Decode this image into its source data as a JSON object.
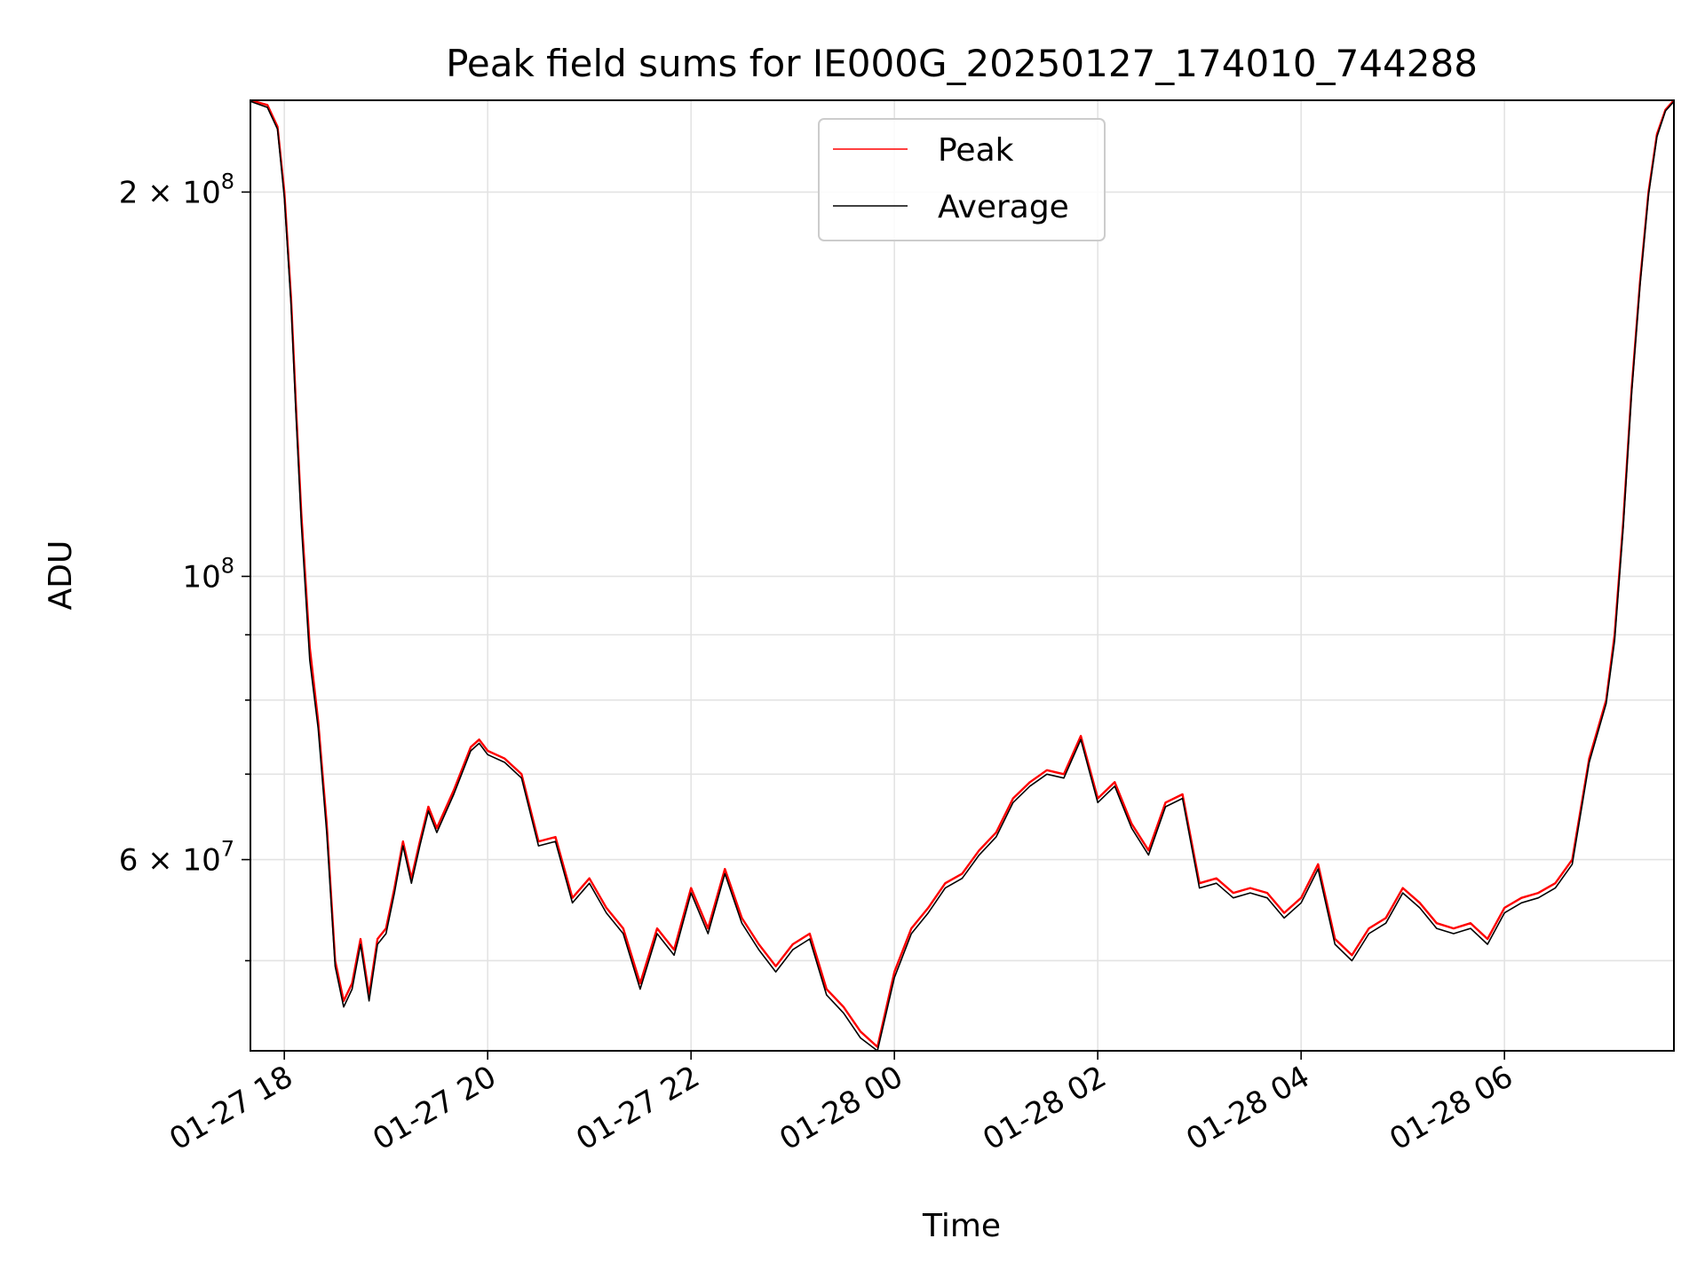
{
  "chart_data": {
    "type": "line",
    "title": "Peak field sums for IE000G_20250127_174010_744288",
    "xlabel": "Time",
    "ylabel": "ADU",
    "yscale": "log",
    "xlim": [
      "2025-01-27 17:40",
      "2025-01-28 07:40"
    ],
    "ylim": [
      42500000,
      236000000
    ],
    "grid": true,
    "legend_position": "upper center",
    "x_ticks": [
      {
        "value": "2025-01-27 18:00",
        "label": "01-27 18"
      },
      {
        "value": "2025-01-27 20:00",
        "label": "01-27 20"
      },
      {
        "value": "2025-01-27 22:00",
        "label": "01-27 22"
      },
      {
        "value": "2025-01-28 00:00",
        "label": "01-28 00"
      },
      {
        "value": "2025-01-28 02:00",
        "label": "01-28 02"
      },
      {
        "value": "2025-01-28 04:00",
        "label": "01-28 04"
      },
      {
        "value": "2025-01-28 06:00",
        "label": "01-28 06"
      }
    ],
    "y_ticks_major": [
      {
        "value": 200000000,
        "base": "2 × 10",
        "exp": "8"
      },
      {
        "value": 100000000,
        "base": "10",
        "exp": "8"
      },
      {
        "value": 60000000,
        "base": "6 × 10",
        "exp": "7"
      }
    ],
    "y_ticks_minor": [
      50000000,
      70000000,
      80000000,
      90000000
    ],
    "series": [
      {
        "name": "Peak",
        "color": "#ff0000"
      },
      {
        "name": "Average",
        "color": "#000000"
      }
    ],
    "x": [
      "2025-01-27 17:40",
      "2025-01-27 17:50",
      "2025-01-27 17:56",
      "2025-01-27 18:00",
      "2025-01-27 18:04",
      "2025-01-27 18:07",
      "2025-01-27 18:10",
      "2025-01-27 18:15",
      "2025-01-27 18:20",
      "2025-01-27 18:25",
      "2025-01-27 18:30",
      "2025-01-27 18:35",
      "2025-01-27 18:40",
      "2025-01-27 18:45",
      "2025-01-27 18:50",
      "2025-01-27 18:55",
      "2025-01-27 19:00",
      "2025-01-27 19:05",
      "2025-01-27 19:10",
      "2025-01-27 19:15",
      "2025-01-27 19:20",
      "2025-01-27 19:25",
      "2025-01-27 19:30",
      "2025-01-27 19:40",
      "2025-01-27 19:50",
      "2025-01-27 19:55",
      "2025-01-27 20:00",
      "2025-01-27 20:10",
      "2025-01-27 20:20",
      "2025-01-27 20:30",
      "2025-01-27 20:40",
      "2025-01-27 20:50",
      "2025-01-27 21:00",
      "2025-01-27 21:10",
      "2025-01-27 21:20",
      "2025-01-27 21:30",
      "2025-01-27 21:40",
      "2025-01-27 21:50",
      "2025-01-27 22:00",
      "2025-01-27 22:10",
      "2025-01-27 22:20",
      "2025-01-27 22:30",
      "2025-01-27 22:40",
      "2025-01-27 22:50",
      "2025-01-27 23:00",
      "2025-01-27 23:10",
      "2025-01-27 23:20",
      "2025-01-27 23:30",
      "2025-01-27 23:40",
      "2025-01-27 23:50",
      "2025-01-28 00:00",
      "2025-01-28 00:10",
      "2025-01-28 00:20",
      "2025-01-28 00:30",
      "2025-01-28 00:40",
      "2025-01-28 00:50",
      "2025-01-28 01:00",
      "2025-01-28 01:10",
      "2025-01-28 01:20",
      "2025-01-28 01:30",
      "2025-01-28 01:40",
      "2025-01-28 01:50",
      "2025-01-28 02:00",
      "2025-01-28 02:10",
      "2025-01-28 02:20",
      "2025-01-28 02:30",
      "2025-01-28 02:40",
      "2025-01-28 02:50",
      "2025-01-28 03:00",
      "2025-01-28 03:10",
      "2025-01-28 03:20",
      "2025-01-28 03:30",
      "2025-01-28 03:40",
      "2025-01-28 03:50",
      "2025-01-28 04:00",
      "2025-01-28 04:10",
      "2025-01-28 04:20",
      "2025-01-28 04:30",
      "2025-01-28 04:40",
      "2025-01-28 04:50",
      "2025-01-28 05:00",
      "2025-01-28 05:10",
      "2025-01-28 05:20",
      "2025-01-28 05:30",
      "2025-01-28 05:40",
      "2025-01-28 05:50",
      "2025-01-28 06:00",
      "2025-01-28 06:10",
      "2025-01-28 06:20",
      "2025-01-28 06:30",
      "2025-01-28 06:40",
      "2025-01-28 06:50",
      "2025-01-28 07:00",
      "2025-01-28 07:05",
      "2025-01-28 07:10",
      "2025-01-28 07:15",
      "2025-01-28 07:20",
      "2025-01-28 07:25",
      "2025-01-28 07:30",
      "2025-01-28 07:35",
      "2025-01-28 07:40"
    ],
    "peak": [
      236000000,
      234000000,
      225000000,
      200000000,
      165000000,
      135000000,
      112000000,
      88000000,
      77000000,
      64000000,
      50000000,
      46500000,
      48000000,
      52000000,
      47000000,
      52000000,
      53000000,
      57000000,
      62000000,
      58000000,
      62000000,
      66000000,
      63500000,
      68000000,
      73500000,
      74500000,
      73000000,
      72000000,
      70000000,
      62000000,
      62500000,
      56000000,
      58000000,
      55000000,
      53000000,
      48000000,
      53000000,
      51000000,
      57000000,
      53000000,
      59000000,
      54000000,
      51500000,
      49500000,
      51500000,
      52500000,
      47500000,
      46000000,
      44000000,
      42800000,
      49000000,
      53000000,
      55000000,
      57500000,
      58500000,
      61000000,
      63000000,
      67000000,
      69000000,
      70500000,
      70000000,
      75000000,
      67000000,
      69000000,
      64000000,
      61000000,
      66500000,
      67500000,
      57500000,
      58000000,
      56500000,
      57000000,
      56500000,
      54500000,
      56000000,
      59500000,
      52000000,
      50500000,
      53000000,
      54000000,
      57000000,
      55500000,
      53500000,
      53000000,
      53500000,
      52000000,
      55000000,
      56000000,
      56500000,
      57500000,
      60000000,
      72000000,
      80000000,
      90000000,
      110000000,
      140000000,
      170000000,
      200000000,
      222000000,
      232000000,
      236000000
    ],
    "average": [
      235500000,
      233000000,
      224000000,
      198000000,
      163000000,
      133000000,
      110000000,
      86000000,
      76000000,
      63000000,
      49500000,
      46000000,
      47500000,
      51500000,
      46500000,
      51500000,
      52500000,
      56500000,
      61500000,
      57500000,
      61500000,
      65500000,
      63000000,
      67500000,
      73000000,
      74000000,
      72500000,
      71500000,
      69500000,
      61500000,
      62000000,
      55500000,
      57500000,
      54500000,
      52500000,
      47500000,
      52500000,
      50500000,
      56500000,
      52500000,
      58500000,
      53500000,
      51000000,
      49000000,
      51000000,
      52000000,
      47000000,
      45500000,
      43500000,
      42500000,
      48500000,
      52500000,
      54500000,
      57000000,
      58000000,
      60500000,
      62500000,
      66500000,
      68500000,
      70000000,
      69500000,
      74500000,
      66500000,
      68500000,
      63500000,
      60500000,
      66000000,
      67000000,
      57000000,
      57500000,
      56000000,
      56500000,
      56000000,
      54000000,
      55500000,
      59000000,
      51500000,
      50000000,
      52500000,
      53500000,
      56500000,
      55000000,
      53000000,
      52500000,
      53000000,
      51500000,
      54500000,
      55500000,
      56000000,
      57000000,
      59500000,
      71500000,
      79500000,
      89000000,
      109000000,
      139000000,
      169000000,
      199000000,
      221000000,
      231500000,
      235500000
    ]
  }
}
